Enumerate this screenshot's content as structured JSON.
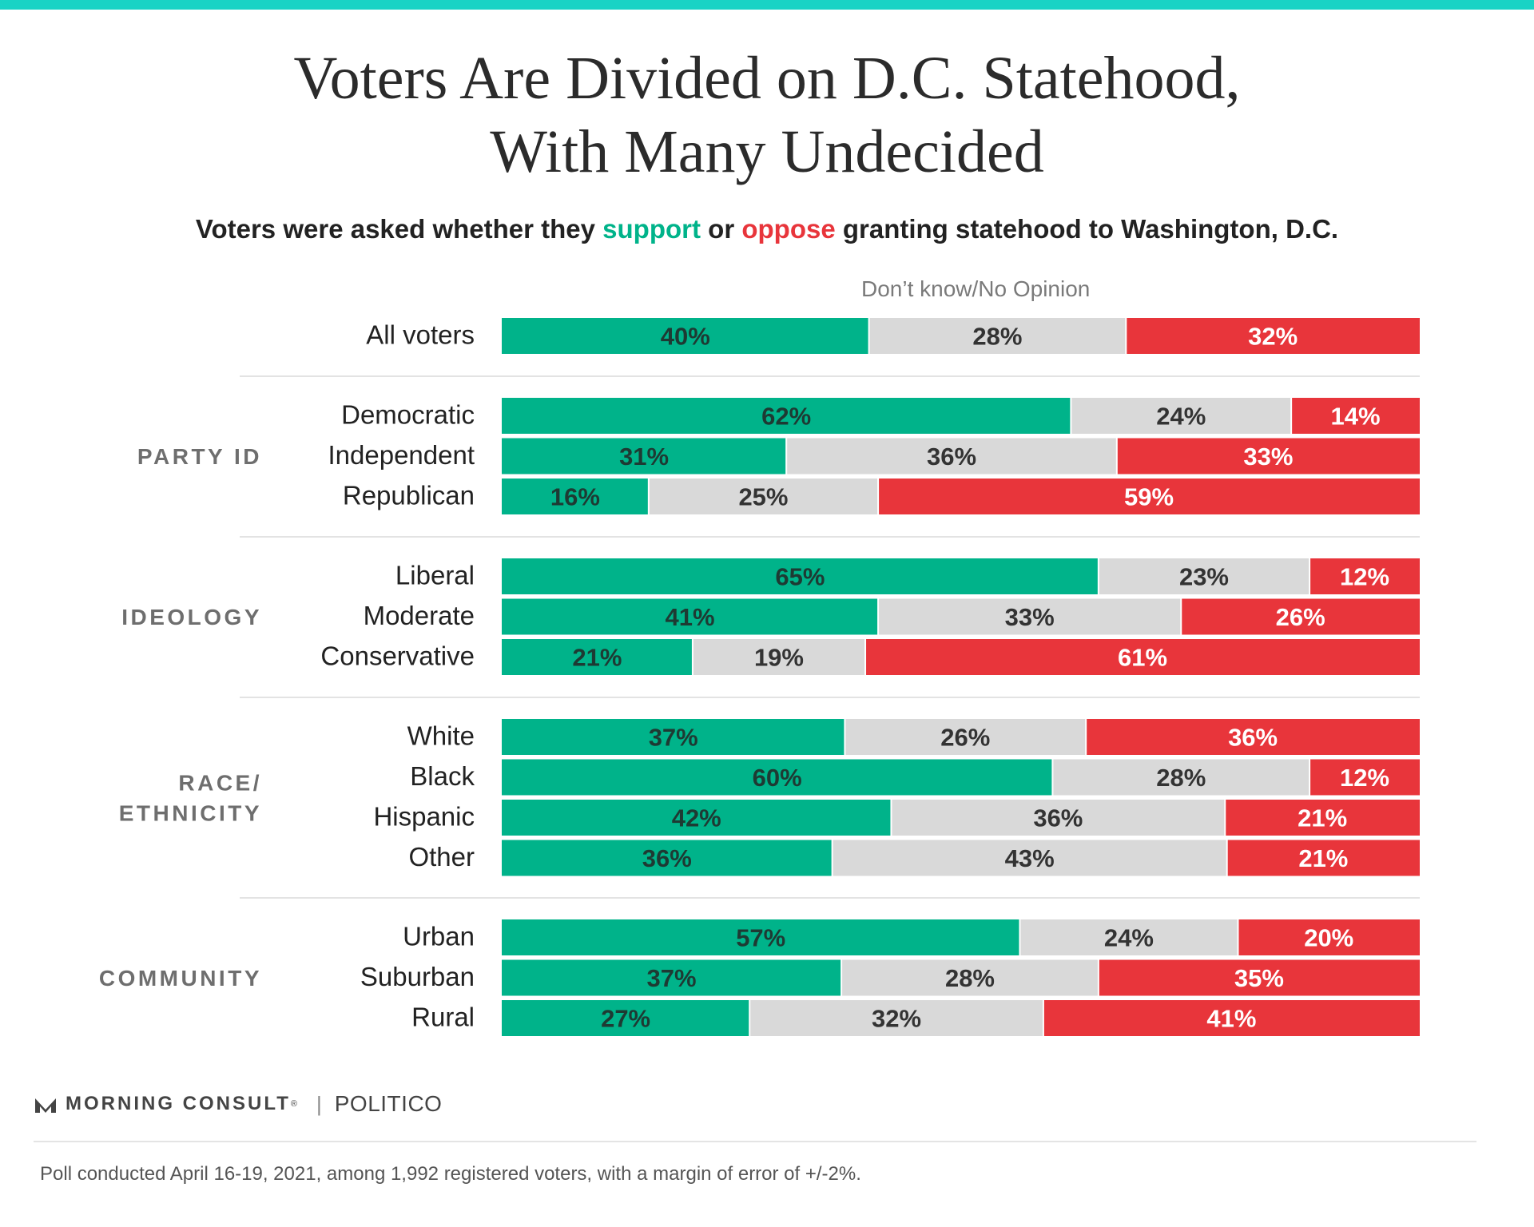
{
  "title": [
    "Voters Are Divided on D.C. Statehood,",
    "With Many Undecided"
  ],
  "subtitle": {
    "part1": "Voters were asked whether they ",
    "support": "support",
    "part2": " or ",
    "oppose": "oppose",
    "part3": " granting statehood to Washington, D.C."
  },
  "middle_label": "Don’t know/No Opinion",
  "colors": {
    "support": "#00b38a",
    "dontknow": "#d9d9d9",
    "oppose": "#e8353b",
    "accent_bar": "#19d3c5"
  },
  "logo": {
    "brand": "MORNING CONSULT",
    "mark": "®",
    "partner": "POLITICO",
    "separator": "|"
  },
  "footnote": "Poll conducted April 16-19, 2021, among 1,992 registered voters, with a margin of error of +/-2%.",
  "chart_data": {
    "type": "bar",
    "orientation": "horizontal",
    "stacked": "100%",
    "series": [
      {
        "name": "support",
        "color": "#00b38a"
      },
      {
        "name": "Don’t know/No Opinion",
        "color": "#d9d9d9"
      },
      {
        "name": "oppose",
        "color": "#e8353b"
      }
    ],
    "groups": [
      {
        "label": "",
        "rows": [
          {
            "label": "All voters",
            "values": [
              40,
              28,
              32
            ]
          }
        ]
      },
      {
        "label": "PARTY ID",
        "rows": [
          {
            "label": "Democratic",
            "values": [
              62,
              24,
              14
            ]
          },
          {
            "label": "Independent",
            "values": [
              31,
              36,
              33
            ]
          },
          {
            "label": "Republican",
            "values": [
              16,
              25,
              59
            ]
          }
        ]
      },
      {
        "label": "IDEOLOGY",
        "rows": [
          {
            "label": "Liberal",
            "values": [
              65,
              23,
              12
            ]
          },
          {
            "label": "Moderate",
            "values": [
              41,
              33,
              26
            ]
          },
          {
            "label": "Conservative",
            "values": [
              21,
              19,
              61
            ]
          }
        ]
      },
      {
        "label": "RACE/\nETHNICITY",
        "rows": [
          {
            "label": "White",
            "values": [
              37,
              26,
              36
            ]
          },
          {
            "label": "Black",
            "values": [
              60,
              28,
              12
            ]
          },
          {
            "label": "Hispanic",
            "values": [
              42,
              36,
              21
            ]
          },
          {
            "label": "Other",
            "values": [
              36,
              43,
              21
            ]
          }
        ]
      },
      {
        "label": "COMMUNITY",
        "rows": [
          {
            "label": "Urban",
            "values": [
              57,
              24,
              20
            ]
          },
          {
            "label": "Suburban",
            "values": [
              37,
              28,
              35
            ]
          },
          {
            "label": "Rural",
            "values": [
              27,
              32,
              41
            ]
          }
        ]
      }
    ]
  }
}
